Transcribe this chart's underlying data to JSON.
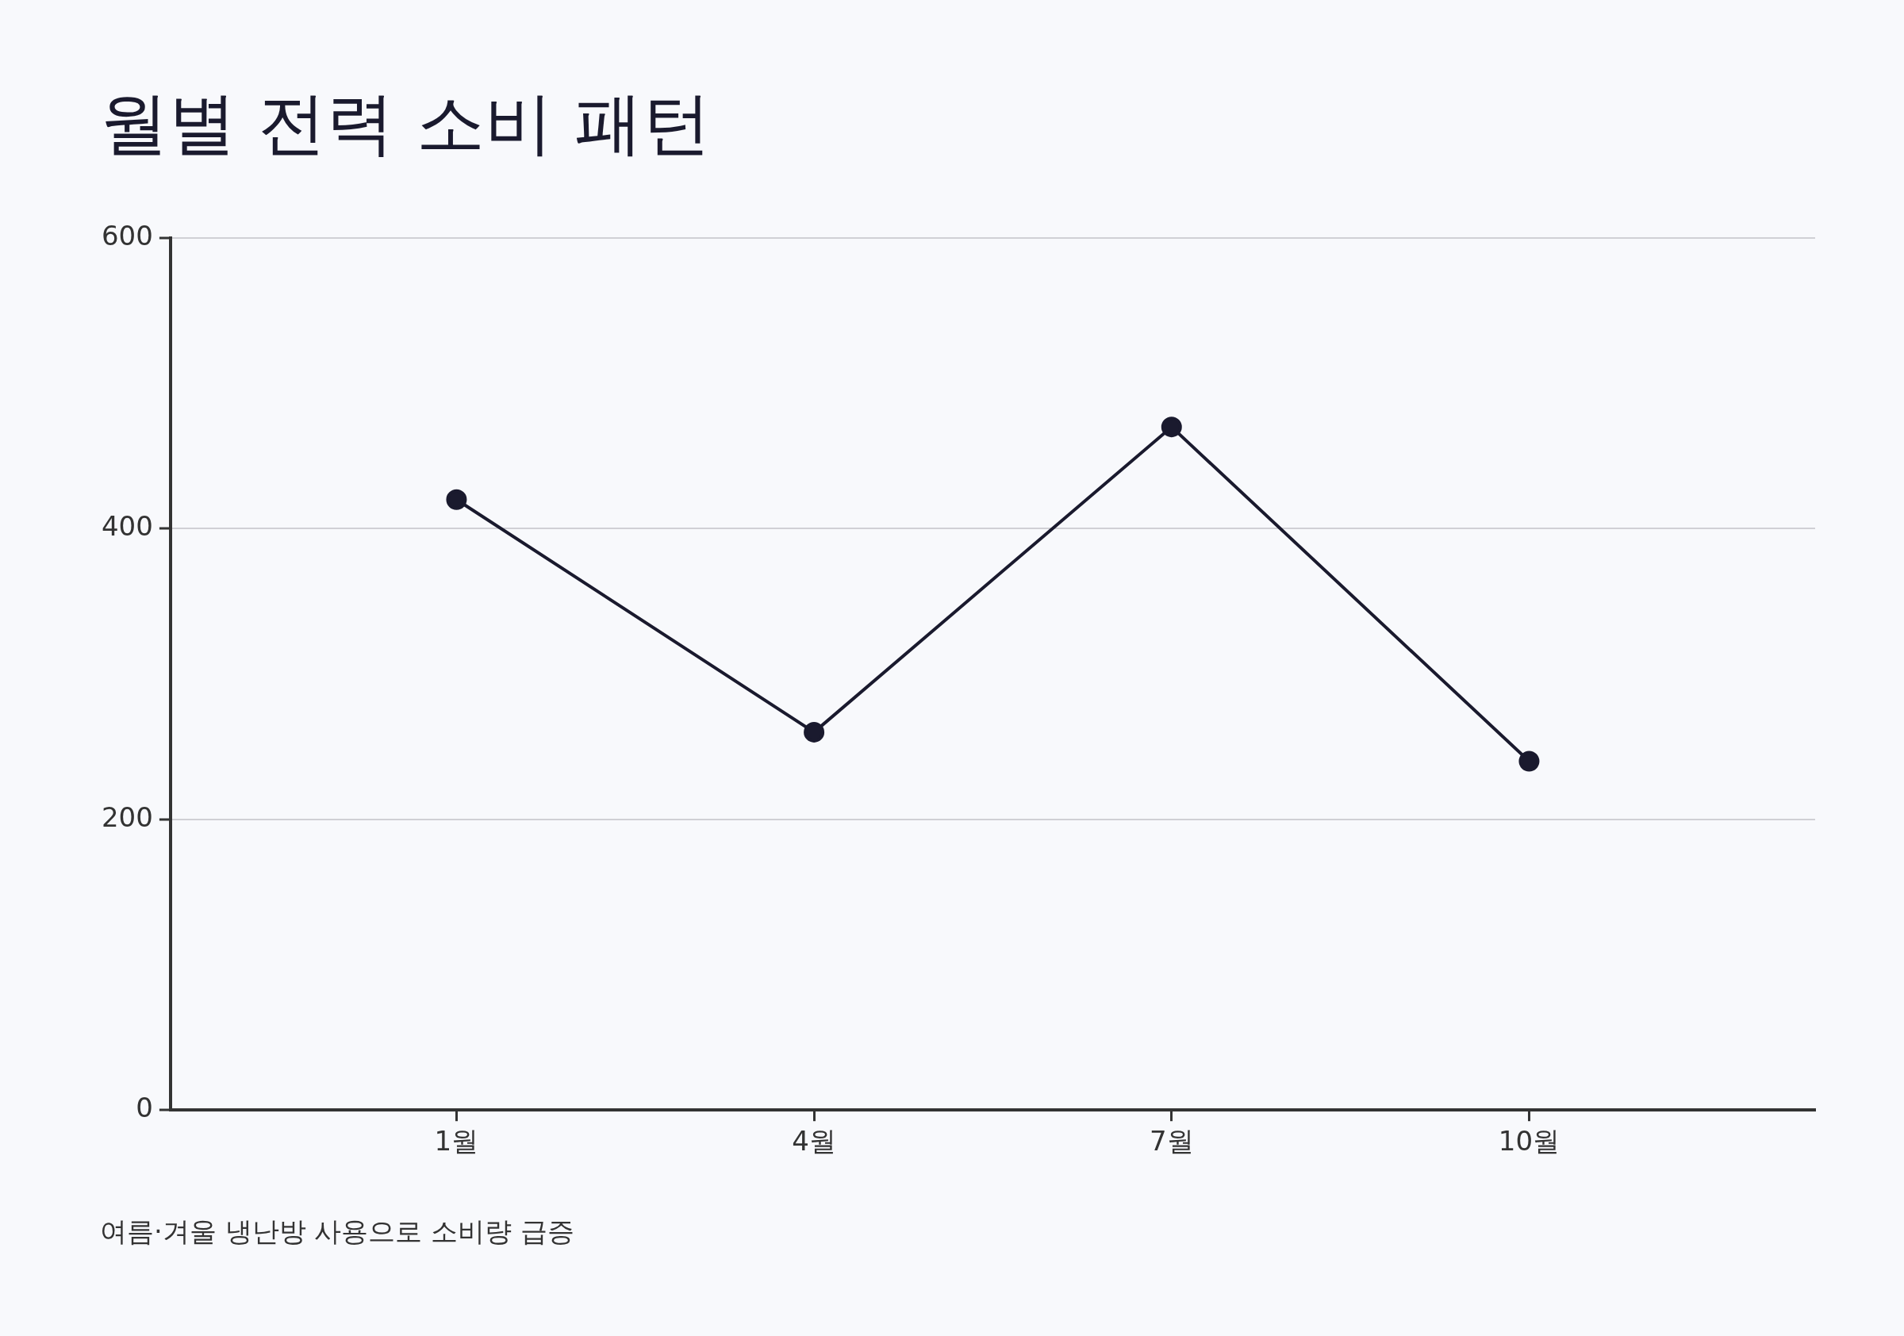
{
  "chart_data": {
    "type": "line",
    "title": "월별 전력 소비 패턴",
    "categories": [
      "1월",
      "4월",
      "7월",
      "10월"
    ],
    "values": [
      420,
      260,
      470,
      240
    ],
    "color": "#1a1a2e",
    "ylim": [
      0,
      600
    ],
    "yticks": [
      0,
      200,
      400,
      600
    ],
    "grid": "y",
    "marker": "circle",
    "line_style": "solid",
    "legend": false,
    "annotations": [
      "여름·겨울 냉난방 사용으로 소비량 급증"
    ]
  }
}
